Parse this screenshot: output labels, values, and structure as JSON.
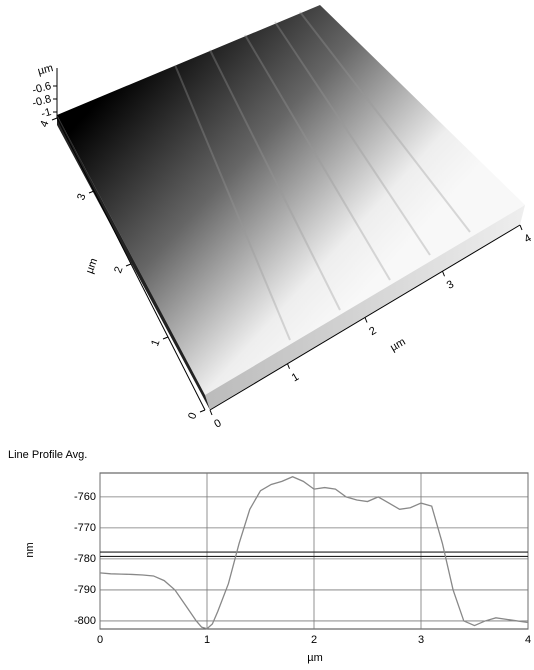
{
  "chart_data": [
    {
      "type": "surface",
      "z_unit": "µm",
      "zticks": [
        -0.6,
        -0.8,
        -1
      ],
      "y_unit": "µm",
      "yticks": [
        0,
        1,
        2,
        3,
        4
      ],
      "x_unit": "µm",
      "xticks": [
        0,
        1,
        2,
        3,
        4
      ]
    },
    {
      "type": "line",
      "title": "Line Profile Avg.",
      "x_label": "µm",
      "y_label": "nm",
      "color": "#888888",
      "x": [
        0,
        0.1,
        0.2,
        0.3,
        0.4,
        0.5,
        0.6,
        0.7,
        0.8,
        0.9,
        0.95,
        1.0,
        1.05,
        1.1,
        1.2,
        1.3,
        1.4,
        1.5,
        1.6,
        1.7,
        1.8,
        1.9,
        2.0,
        2.1,
        2.2,
        2.3,
        2.4,
        2.5,
        2.6,
        2.7,
        2.8,
        2.9,
        3.0,
        3.1,
        3.2,
        3.3,
        3.4,
        3.5,
        3.6,
        3.7,
        3.8,
        3.9,
        4.0
      ],
      "values": [
        -784.5,
        -784.8,
        -784.9,
        -785,
        -785.2,
        -785.5,
        -787,
        -790,
        -795,
        -800,
        -802,
        -802.5,
        -801,
        -797,
        -788,
        -775,
        -764,
        -758,
        -756,
        -755,
        -753.5,
        -755,
        -757.5,
        -757,
        -757.5,
        -760,
        -761,
        -761.5,
        -760,
        -762,
        -764,
        -763.5,
        -762,
        -763,
        -775,
        -790,
        -800,
        -801.5,
        -800,
        -799,
        -799.5,
        -800,
        -800.5
      ],
      "xlim": [
        0,
        4
      ],
      "ylim": [
        -802.6,
        -752.3
      ],
      "xticks": [
        0,
        1,
        2,
        3,
        4
      ],
      "yticks": [
        -760,
        -770,
        -780,
        -790,
        -800
      ],
      "reference_lines": [
        -777.8,
        -779.2
      ],
      "grid": true
    }
  ]
}
